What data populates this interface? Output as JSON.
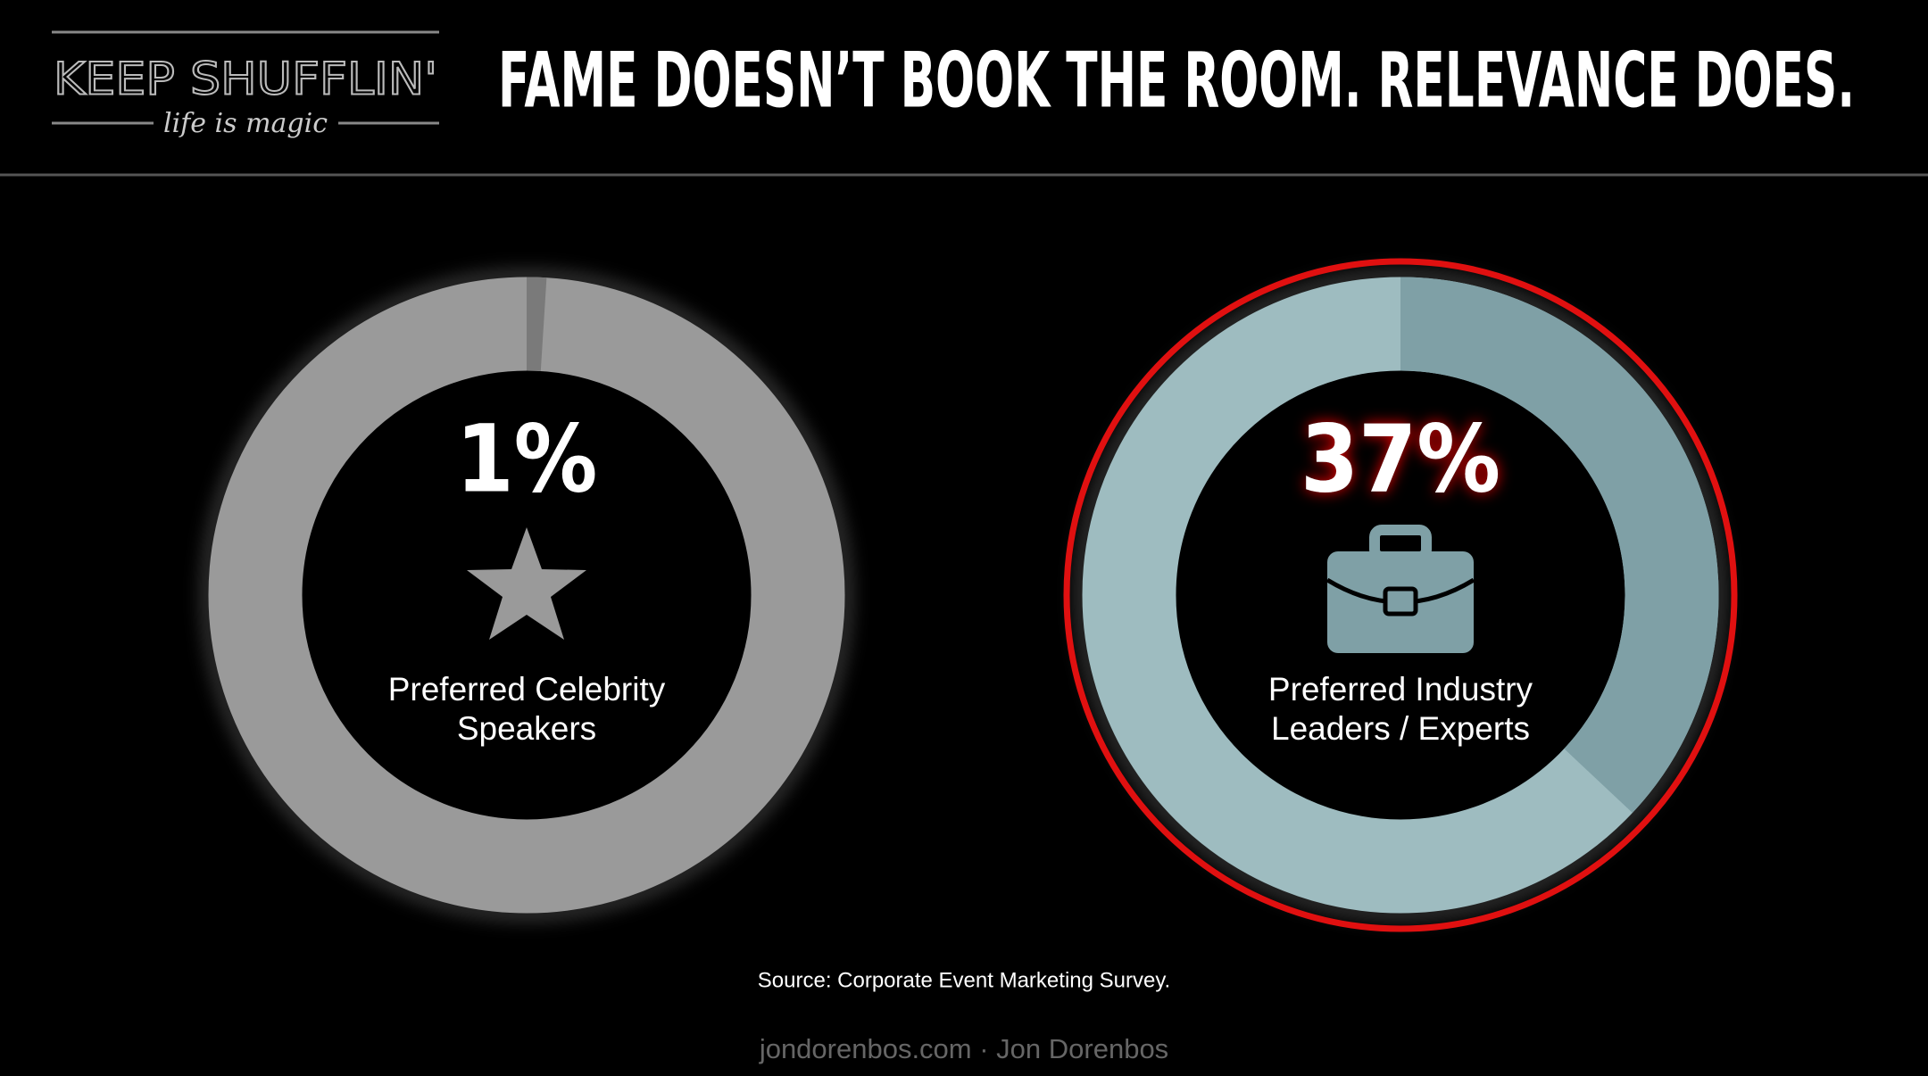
{
  "header": {
    "logo": "KEEP SHUFFLIN'",
    "tagline": "life is magic",
    "title": "FAME DOESN’T BOOK THE ROOM. RELEVANCE DOES."
  },
  "chart_data": [
    {
      "type": "donut",
      "categories": [
        "Preferred Celebrity Speakers"
      ],
      "values": [
        1
      ],
      "value_labels": [
        "1%"
      ],
      "ylim": [
        0,
        100
      ],
      "color": "#7a7a7a",
      "track_color": "#9a9a9a"
    },
    {
      "type": "donut",
      "categories": [
        "Preferred Industry Leaders / Experts"
      ],
      "values": [
        37
      ],
      "value_labels": [
        "37%"
      ],
      "ylim": [
        0,
        100
      ],
      "color": "#7fa0a6",
      "track_color": "#9ebcc0",
      "ring_color": "#e01010"
    }
  ],
  "source": "Source: Corporate Event Marketing Survey.",
  "footer": "jondorenbos.com · Jon Dorenbos"
}
